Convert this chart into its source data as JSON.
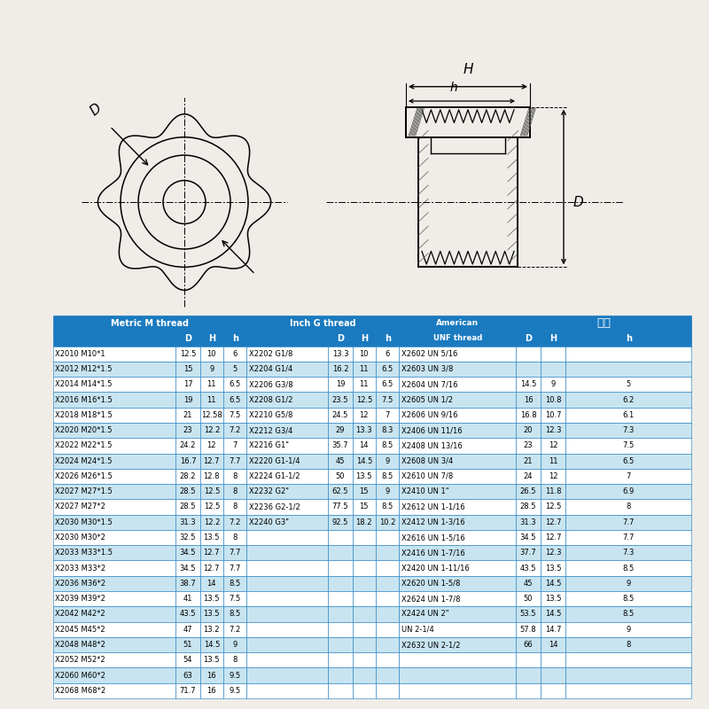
{
  "bg_color": "#f0ede8",
  "header_color": "#1a7abf",
  "header_text_color": "#ffffff",
  "row_alt_color": "#c8e4f0",
  "row_white_color": "#ffffff",
  "border_color": "#1a7abf",
  "rows": [
    [
      "X2010 M10*1",
      "12.5",
      "10",
      "6",
      "X2202 G1/8",
      "13.3",
      "10",
      "6",
      "X2602 UN 5/16",
      "",
      "",
      ""
    ],
    [
      "X2012 M12*1.5",
      "15",
      "9",
      "5",
      "X2204 G1/4",
      "16.2",
      "11",
      "6.5",
      "X2603 UN 3/8",
      "",
      "",
      ""
    ],
    [
      "X2014 M14*1.5",
      "17",
      "11",
      "6.5",
      "X2206 G3/8",
      "19",
      "11",
      "6.5",
      "X2604 UN 7/16",
      "14.5",
      "9",
      "5"
    ],
    [
      "X2016 M16*1.5",
      "19",
      "11",
      "6.5",
      "X2208 G1/2",
      "23.5",
      "12.5",
      "7.5",
      "X2605 UN 1/2",
      "16",
      "10.8",
      "6.2"
    ],
    [
      "X2018 M18*1.5",
      "21",
      "12.58",
      "7.5",
      "X2210 G5/8",
      "24.5",
      "12",
      "7",
      "X2606 UN 9/16",
      "16.8",
      "10.7",
      "6.1"
    ],
    [
      "X2020 M20*1.5",
      "23",
      "12.2",
      "7.2",
      "X2212 G3/4",
      "29",
      "13.3",
      "8.3",
      "X2406 UN 11/16",
      "20",
      "12.3",
      "7.3"
    ],
    [
      "X2022 M22*1.5",
      "24.2",
      "12",
      "7",
      "X2216 G1\"",
      "35.7",
      "14",
      "8.5",
      "X2408 UN 13/16",
      "23",
      "12",
      "7.5"
    ],
    [
      "X2024 M24*1.5",
      "16.7",
      "12.7",
      "7.7",
      "X2220 G1-1/4",
      "45",
      "14.5",
      "9",
      "X2608 UN 3/4",
      "21",
      "11",
      "6.5"
    ],
    [
      "X2026 M26*1.5",
      "28.2",
      "12.8",
      "8",
      "X2224 G1-1/2",
      "50",
      "13.5",
      "8.5",
      "X2610 UN 7/8",
      "24",
      "12",
      "7"
    ],
    [
      "X2027 M27*1.5",
      "28.5",
      "12.5",
      "8",
      "X2232 G2\"",
      "62.5",
      "15",
      "9",
      "X2410 UN 1\"",
      "26.5",
      "11.8",
      "6.9"
    ],
    [
      "X2027 M27*2",
      "28.5",
      "12.5",
      "8",
      "X2236 G2-1/2",
      "77.5",
      "15",
      "8.5",
      "X2612 UN 1-1/16",
      "28.5",
      "12.5",
      "8"
    ],
    [
      "X2030 M30*1.5",
      "31.3",
      "12.2",
      "7.2",
      "X2240 G3\"",
      "92.5",
      "18.2",
      "10.2",
      "X2412 UN 1-3/16",
      "31.3",
      "12.7",
      "7.7"
    ],
    [
      "X2030 M30*2",
      "32.5",
      "13.5",
      "8",
      "",
      "",
      "",
      "",
      "X2616 UN 1-5/16",
      "34.5",
      "12.7",
      "7.7"
    ],
    [
      "X2033 M33*1.5",
      "34.5",
      "12.7",
      "7.7",
      "",
      "",
      "",
      "",
      "X2416 UN 1-7/16",
      "37.7",
      "12.3",
      "7.3"
    ],
    [
      "X2033 M33*2",
      "34.5",
      "12.7",
      "7.7",
      "",
      "",
      "",
      "",
      "X2420 UN 1-11/16",
      "43.5",
      "13.5",
      "8.5"
    ],
    [
      "X2036 M36*2",
      "38.7",
      "14",
      "8.5",
      "",
      "",
      "",
      "",
      "X2620 UN 1-5/8",
      "45",
      "14.5",
      "9"
    ],
    [
      "X2039 M39*2",
      "41",
      "13.5",
      "7.5",
      "",
      "",
      "",
      "",
      "X2624 UN 1-7/8",
      "50",
      "13.5",
      "8.5"
    ],
    [
      "X2042 M42*2",
      "43.5",
      "13.5",
      "8.5",
      "",
      "",
      "",
      "",
      "X2424 UN 2\"",
      "53.5",
      "14.5",
      "8.5"
    ],
    [
      "X2045 M45*2",
      "47",
      "13.2",
      "7.2",
      "",
      "",
      "",
      "",
      "UN 2-1/4",
      "57.8",
      "14.7",
      "9"
    ],
    [
      "X2048 M48*2",
      "51",
      "14.5",
      "9",
      "",
      "",
      "",
      "",
      "X2632 UN 2-1/2",
      "66",
      "14",
      "8"
    ],
    [
      "X2052 M52*2",
      "54",
      "13.5",
      "8",
      "",
      "",
      "",
      "",
      "",
      "",
      "",
      ""
    ],
    [
      "X2060 M60*2",
      "63",
      "16",
      "9.5",
      "",
      "",
      "",
      "",
      "",
      "",
      "",
      ""
    ],
    [
      "X2068 M68*2",
      "71.7",
      "16",
      "9.5",
      "",
      "",
      "",
      "",
      "",
      "",
      "",
      ""
    ]
  ]
}
